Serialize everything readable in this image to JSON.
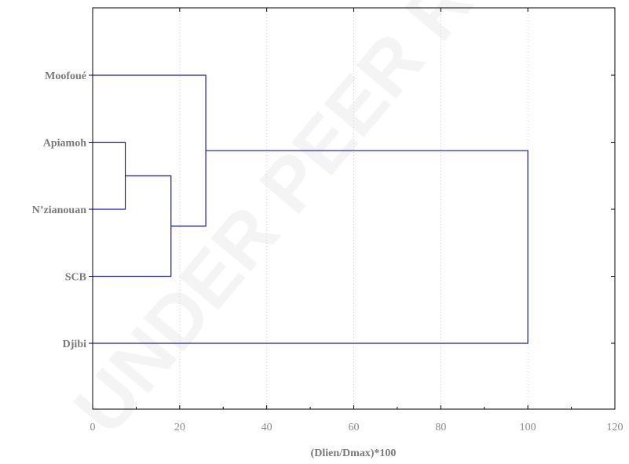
{
  "chart_data": {
    "type": "dendrogram",
    "orientation": "horizontal",
    "xlabel": "(Dlien/Dmax)*100",
    "xlim": [
      0,
      120
    ],
    "xticks": [
      0,
      20,
      40,
      60,
      80,
      100,
      120
    ],
    "grid": "vertical dotted",
    "leaves": [
      "Moofoué",
      "Apiamoh",
      "N’zianouan",
      "SCB",
      "Djibi"
    ],
    "merges": [
      {
        "a": "Apiamoh",
        "b": "N’zianouan",
        "height": 7.5
      },
      {
        "a": "Apiamoh + N’zianouan",
        "b": "SCB",
        "height": 18
      },
      {
        "a": "Apiamoh + N’zianouan + SCB",
        "b": "Moofoué",
        "height": 26
      },
      {
        "a": "Moofoué + Apiamoh + N’zianouan + SCB",
        "b": "Djibi",
        "height": 100
      }
    ],
    "line_color": "#1a1aaa"
  },
  "watermark": "UNDER PEER REVIEW"
}
